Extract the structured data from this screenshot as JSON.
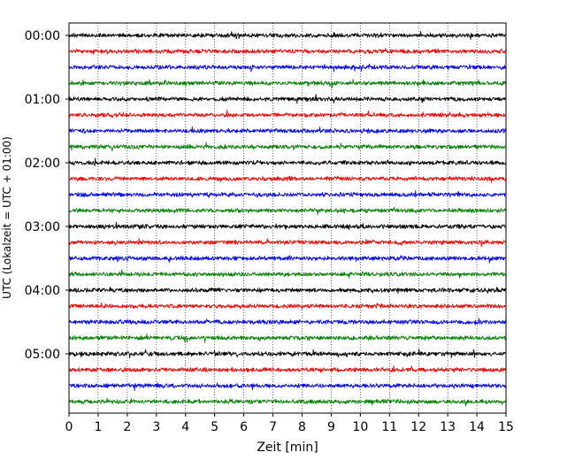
{
  "chart_data": {
    "type": "line",
    "title": "",
    "xlabel": "Zeit  [min]",
    "ylabel": "UTC (Lokalzeit = UTC + 01:00)",
    "xlim": [
      0,
      15
    ],
    "x_ticks": [
      "0",
      "1",
      "2",
      "3",
      "4",
      "5",
      "6",
      "7",
      "8",
      "9",
      "10",
      "11",
      "12",
      "13",
      "14",
      "15"
    ],
    "y_tick_labels": [
      "00:00",
      "01:00",
      "02:00",
      "03:00",
      "04:00",
      "05:00"
    ],
    "trace_interval_min": 15,
    "trace_count": 24,
    "grid": "vertical dotted lines at each minute",
    "color_cycle": [
      "#000000",
      "#ff0000",
      "#0000ff",
      "#008000"
    ],
    "series": [
      {
        "start_utc": "00:00",
        "color": "#000000"
      },
      {
        "start_utc": "00:15",
        "color": "#ff0000"
      },
      {
        "start_utc": "00:30",
        "color": "#0000ff"
      },
      {
        "start_utc": "00:45",
        "color": "#008000"
      },
      {
        "start_utc": "01:00",
        "color": "#000000"
      },
      {
        "start_utc": "01:15",
        "color": "#ff0000"
      },
      {
        "start_utc": "01:30",
        "color": "#0000ff"
      },
      {
        "start_utc": "01:45",
        "color": "#008000"
      },
      {
        "start_utc": "02:00",
        "color": "#000000"
      },
      {
        "start_utc": "02:15",
        "color": "#ff0000"
      },
      {
        "start_utc": "02:30",
        "color": "#0000ff"
      },
      {
        "start_utc": "02:45",
        "color": "#008000"
      },
      {
        "start_utc": "03:00",
        "color": "#000000"
      },
      {
        "start_utc": "03:15",
        "color": "#ff0000"
      },
      {
        "start_utc": "03:30",
        "color": "#0000ff"
      },
      {
        "start_utc": "03:45",
        "color": "#008000"
      },
      {
        "start_utc": "04:00",
        "color": "#000000"
      },
      {
        "start_utc": "04:15",
        "color": "#ff0000"
      },
      {
        "start_utc": "04:30",
        "color": "#0000ff"
      },
      {
        "start_utc": "04:45",
        "color": "#008000"
      },
      {
        "start_utc": "05:00",
        "color": "#000000"
      },
      {
        "start_utc": "05:15",
        "color": "#ff0000"
      },
      {
        "start_utc": "05:30",
        "color": "#0000ff"
      },
      {
        "start_utc": "05:45",
        "color": "#008000"
      }
    ]
  }
}
